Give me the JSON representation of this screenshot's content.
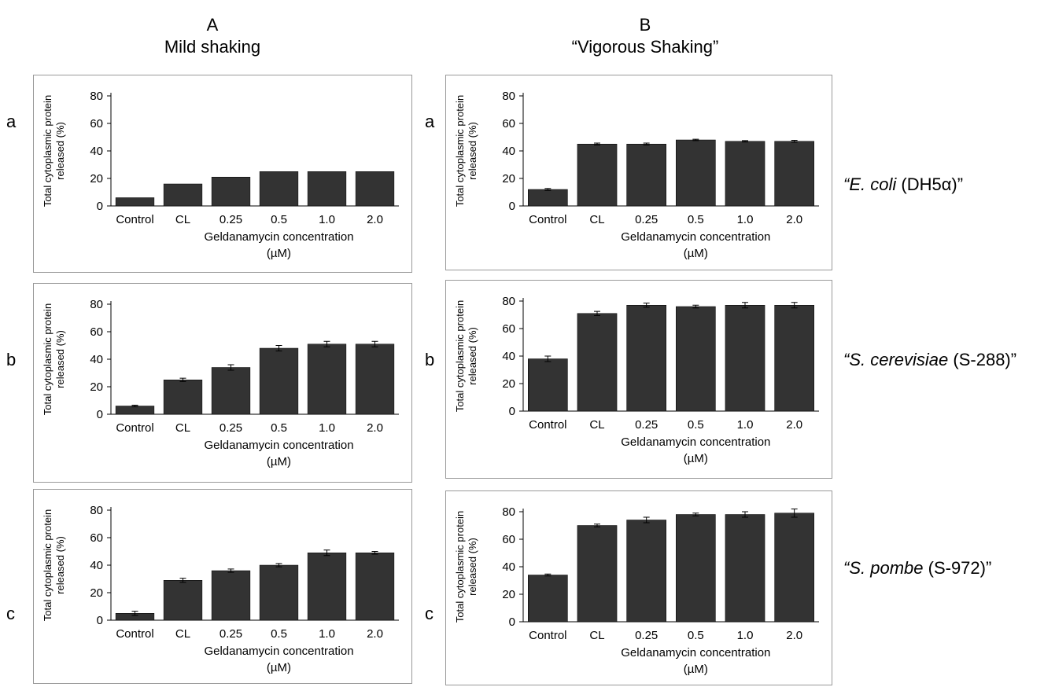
{
  "columns": [
    {
      "letter": "A",
      "subtitle": "Mild shaking"
    },
    {
      "letter": "B",
      "subtitle": "“Vigorous Shaking”"
    }
  ],
  "row_labels": [
    "a",
    "b",
    "c"
  ],
  "organisms": [
    {
      "italic": "“E. coli",
      "plain": " (DH5α)”"
    },
    {
      "italic": "“S. cerevisiae",
      "plain": " (S-288)”"
    },
    {
      "italic": "“S. pombe",
      "plain": " (S-972)”"
    }
  ],
  "chart_data": [
    {
      "id": "A-a",
      "type": "bar",
      "categories": [
        "Control",
        "CL",
        "0.25",
        "0.5",
        "1.0",
        "2.0"
      ],
      "values": [
        6,
        16,
        21,
        25,
        25,
        25
      ],
      "errors": [
        0,
        0,
        0,
        0,
        0,
        0
      ],
      "ylabel": "Total cytoplasmic protein released (%)",
      "xlabel": "Geldanamycin concentration (µM)",
      "ylim": [
        0,
        80
      ],
      "yticks": [
        0,
        20,
        40,
        60,
        80
      ]
    },
    {
      "id": "B-a",
      "type": "bar",
      "categories": [
        "Control",
        "CL",
        "0.25",
        "0.5",
        "1.0",
        "2.0"
      ],
      "values": [
        12,
        45,
        45,
        48,
        47,
        47
      ],
      "errors": [
        0.7,
        0.7,
        0.7,
        0.5,
        0.5,
        0.7
      ],
      "ylabel": "Total cytoplasmic protein released (%)",
      "xlabel": "Geldanamycin concentration (µM)",
      "ylim": [
        0,
        80
      ],
      "yticks": [
        0,
        20,
        40,
        60,
        80
      ]
    },
    {
      "id": "A-b",
      "type": "bar",
      "categories": [
        "Control",
        "CL",
        "0.25",
        "0.5",
        "1.0",
        "2.0"
      ],
      "values": [
        6,
        25,
        34,
        48,
        51,
        51
      ],
      "errors": [
        0.6,
        1.2,
        2,
        2,
        2,
        2
      ],
      "ylabel": "Total cytoplasmic protein released (%)",
      "xlabel": "Geldanamycin concentration (µM)",
      "ylim": [
        0,
        80
      ],
      "yticks": [
        0,
        20,
        40,
        60,
        80
      ]
    },
    {
      "id": "B-b",
      "type": "bar",
      "categories": [
        "Control",
        "CL",
        "0.25",
        "0.5",
        "1.0",
        "2.0"
      ],
      "values": [
        38,
        71,
        77,
        76,
        77,
        77
      ],
      "errors": [
        2,
        1.5,
        1.5,
        1,
        2,
        2
      ],
      "ylabel": "Total cytoplasmic protein released (%)",
      "xlabel": "Geldanamycin concentration (µM)",
      "ylim": [
        0,
        80
      ],
      "yticks": [
        0,
        20,
        40,
        60,
        80
      ]
    },
    {
      "id": "A-c",
      "type": "bar",
      "categories": [
        "Control",
        "CL",
        "0.25",
        "0.5",
        "1.0",
        "2.0"
      ],
      "values": [
        5,
        29,
        36,
        40,
        49,
        49
      ],
      "errors": [
        1.5,
        1.5,
        1.2,
        1.2,
        2,
        1
      ],
      "ylabel": "Total cytoplasmic protein released (%)",
      "xlabel": "Geldanamycin concentration (µM)",
      "ylim": [
        0,
        80
      ],
      "yticks": [
        0,
        20,
        40,
        60,
        80
      ]
    },
    {
      "id": "B-c",
      "type": "bar",
      "categories": [
        "Control",
        "CL",
        "0.25",
        "0.5",
        "1.0",
        "2.0"
      ],
      "values": [
        34,
        70,
        74,
        78,
        78,
        79
      ],
      "errors": [
        0.7,
        1,
        2,
        1,
        2,
        3
      ],
      "ylabel": "Total cytoplasmic protein released (%)",
      "xlabel": "Geldanamycin concentration (µM)",
      "ylim": [
        0,
        80
      ],
      "yticks": [
        0,
        20,
        40,
        60,
        80
      ]
    }
  ],
  "colors": {
    "bar": "#333333",
    "axis": "#000000",
    "panel_border": "#999999"
  }
}
